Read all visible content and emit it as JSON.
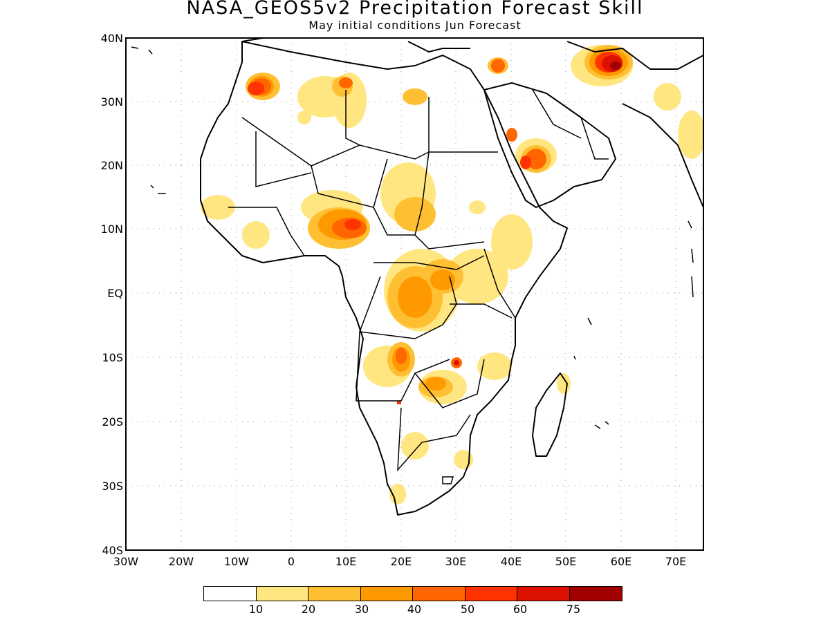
{
  "title": "NASA_GEOS5v2 Precipitation Forecast Skill",
  "subtitle": "May initial conditions  Jun Forecast",
  "map": {
    "lat_ticks": [
      "40N",
      "30N",
      "20N",
      "10N",
      "EQ",
      "10S",
      "20S",
      "30S",
      "40S"
    ],
    "lon_ticks": [
      "30W",
      "20W",
      "10W",
      "0",
      "10E",
      "20E",
      "30E",
      "40E",
      "50E",
      "60E",
      "70E"
    ],
    "extent": {
      "lon_min": -30,
      "lon_max": 75,
      "lat_min": -40,
      "lat_max": 40
    },
    "grid": "dotted",
    "region": "Africa and Arabian Peninsula"
  },
  "colorbar": {
    "labels": [
      "10",
      "20",
      "30",
      "40",
      "50",
      "60",
      "75"
    ],
    "colors": [
      "#ffffff",
      "#ffe680",
      "#ffbf33",
      "#ff9900",
      "#ff6600",
      "#ff3300",
      "#dd1100",
      "#a00000"
    ]
  }
}
